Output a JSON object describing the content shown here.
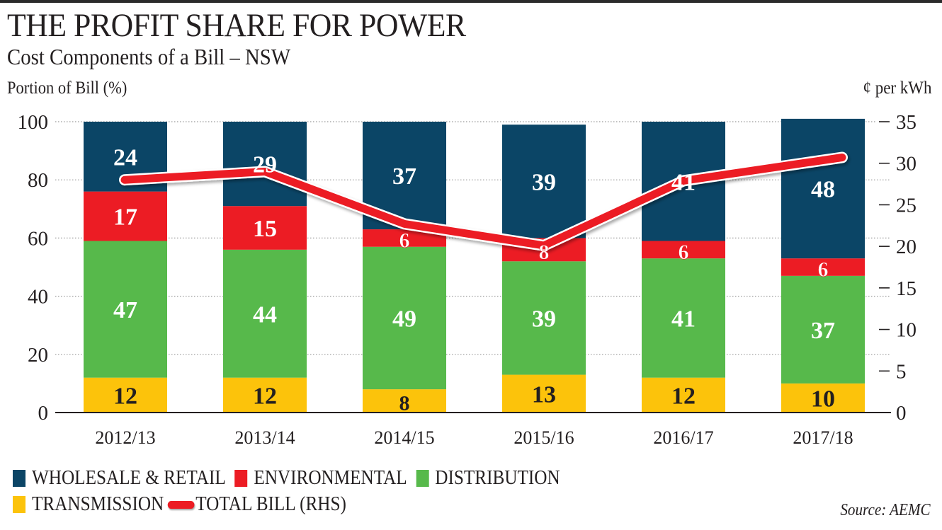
{
  "header": {
    "title": "THE PROFIT SHARE FOR POWER",
    "subtitle": "Cost Components of a Bill – NSW"
  },
  "chart_data": {
    "type": "bar",
    "stacked": true,
    "title": "THE PROFIT SHARE FOR POWER",
    "subtitle": "Cost Components of a Bill – NSW",
    "xlabel": "",
    "ylabel": "Portion of Bill (%)",
    "ylabel_right": "¢ per kWh",
    "ylim": [
      0,
      100
    ],
    "ylim_right": [
      0,
      35
    ],
    "yticks": [
      "0",
      "20",
      "40",
      "60",
      "80",
      "100"
    ],
    "yticks_right": [
      "0",
      "5",
      "10",
      "15",
      "20",
      "25",
      "30",
      "35"
    ],
    "grid": "dotted horizontal",
    "categories": [
      "2012/13",
      "2013/14",
      "2014/15",
      "2015/16",
      "2016/17",
      "2017/18"
    ],
    "series": [
      {
        "name": "TRANSMISSION",
        "color": "#fcc30b",
        "label_color": "#231f20",
        "values": [
          12,
          12,
          8,
          13,
          12,
          10
        ]
      },
      {
        "name": "DISTRIBUTION",
        "color": "#57b94b",
        "label_color": "#ffffff",
        "values": [
          47,
          44,
          49,
          39,
          41,
          37
        ]
      },
      {
        "name": "ENVIRONMENTAL",
        "color": "#ec1c24",
        "label_color": "#ffffff",
        "values": [
          17,
          15,
          6,
          8,
          6,
          6
        ]
      },
      {
        "name": "WHOLESALE & RETAIL",
        "color": "#0b4566",
        "label_color": "#ffffff",
        "values": [
          24,
          29,
          37,
          39,
          41,
          48
        ]
      }
    ],
    "line_series": {
      "name": "TOTAL BILL (RHS)",
      "axis": "right",
      "color": "#ec1c24",
      "values": [
        28.0,
        29.0,
        22.7,
        20.1,
        27.9,
        30.7
      ]
    },
    "legend": {
      "placement": "bottom-left",
      "entries": [
        "WHOLESALE & RETAIL",
        "ENVIRONMENTAL",
        "DISTRIBUTION",
        "TRANSMISSION",
        "TOTAL BILL (RHS)"
      ]
    }
  },
  "legend": {
    "items": [
      {
        "label": "WHOLESALE & RETAIL",
        "color": "#0b4566"
      },
      {
        "label": "ENVIRONMENTAL",
        "color": "#ec1c24"
      },
      {
        "label": "DISTRIBUTION",
        "color": "#57b94b"
      },
      {
        "label": "TRANSMISSION",
        "color": "#fcc30b"
      },
      {
        "label": "TOTAL BILL (RHS)",
        "color": "#ec1c24"
      }
    ]
  },
  "footer": {
    "source": "Source: AEMC"
  }
}
